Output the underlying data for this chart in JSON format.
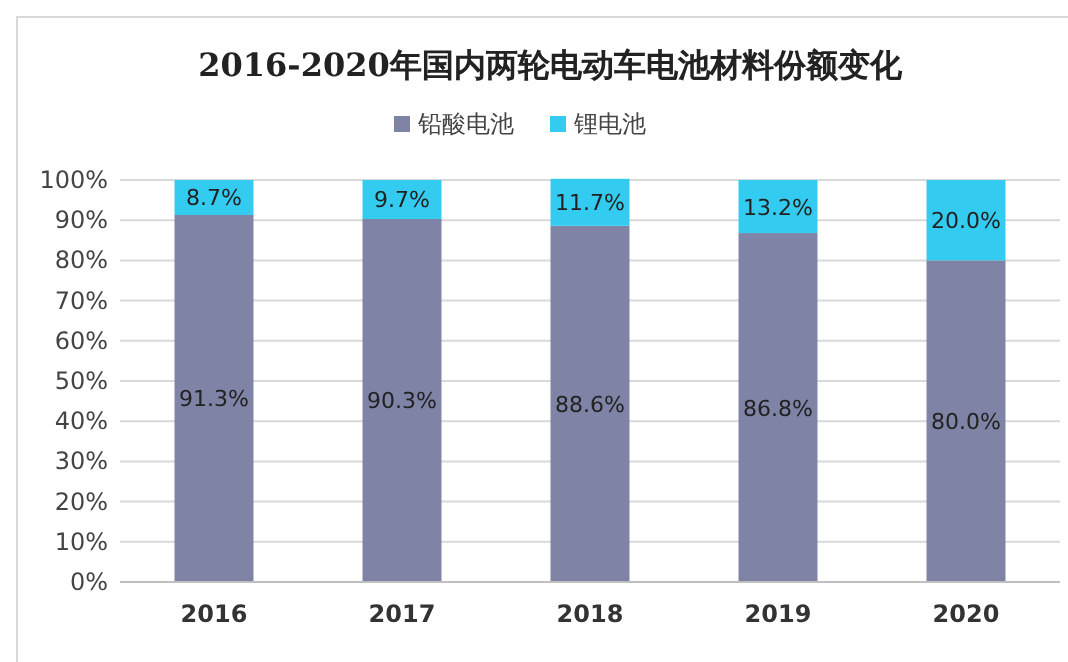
{
  "chart_data": {
    "type": "bar",
    "title": "2016-2020年国内两轮电动车电池材料份额变化",
    "categories": [
      "2016",
      "2017",
      "2018",
      "2019",
      "2020"
    ],
    "stacked": true,
    "series": [
      {
        "name": "铅酸电池",
        "color": "#7f83a5",
        "values": [
          91.3,
          90.3,
          88.6,
          86.8,
          80.0
        ],
        "value_labels": [
          "91.3%",
          "90.3%",
          "88.6%",
          "86.8%",
          "80.0%"
        ]
      },
      {
        "name": "锂电池",
        "color": "#33ccf0",
        "values": [
          8.7,
          9.7,
          11.7,
          13.2,
          20.0
        ],
        "value_labels": [
          "8.7%",
          "9.7%",
          "11.7%",
          "13.2%",
          "20.0%"
        ]
      }
    ],
    "ylim": [
      0,
      100
    ],
    "yticks": [
      {
        "value": 0,
        "label": "0%"
      },
      {
        "value": 10,
        "label": "10%"
      },
      {
        "value": 20,
        "label": "20%"
      },
      {
        "value": 30,
        "label": "30%"
      },
      {
        "value": 40,
        "label": "40%"
      },
      {
        "value": 50,
        "label": "50%"
      },
      {
        "value": 60,
        "label": "60%"
      },
      {
        "value": 70,
        "label": "70%"
      },
      {
        "value": 80,
        "label": "80%"
      },
      {
        "value": 90,
        "label": "90%"
      },
      {
        "value": 100,
        "label": "100%"
      }
    ],
    "grid": "y",
    "legend": "top"
  }
}
